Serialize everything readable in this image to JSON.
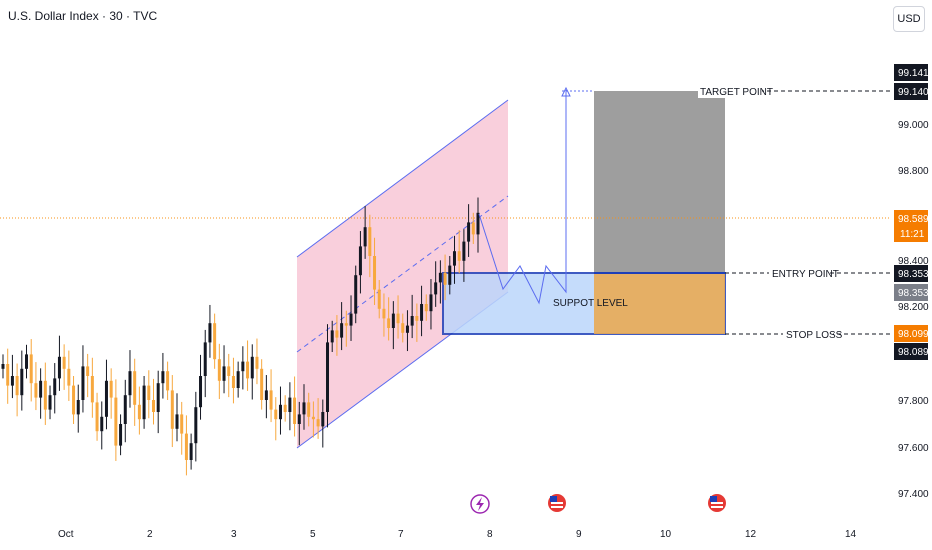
{
  "header": {
    "title": "U.S. Dollar Index · 30 · TVC",
    "currency_button": "USD"
  },
  "colors": {
    "candle_up": "#131722",
    "candle_down": "#f7a83e",
    "channel_fill": "#f8c7d6",
    "channel_line": "#5b6cf0",
    "support_fill": "#bcd6fb",
    "support_border": "#1e3fb8",
    "target_fill": "#9e9e9e",
    "stop_fill": "#e8aa54",
    "price_line": "#f7931a",
    "current_price_tag": "#f57c00"
  },
  "chart_data": {
    "type": "candlestick",
    "symbol": "U.S. Dollar Index",
    "interval": "30",
    "source": "TVC",
    "ylim": [
      97.28,
      99.28
    ],
    "y_ticks": [
      "99.000",
      "98.800",
      "98.400",
      "98.200",
      "97.800",
      "97.600",
      "97.400"
    ],
    "x_ticks": [
      "Oct",
      "2",
      "3",
      "5",
      "7",
      "8",
      "9",
      "10",
      "12",
      "14"
    ],
    "close_path": [
      97.93,
      97.84,
      97.88,
      97.8,
      97.91,
      97.97,
      97.85,
      97.79,
      97.86,
      97.74,
      97.8,
      97.87,
      97.96,
      97.91,
      97.84,
      97.72,
      97.78,
      97.92,
      97.88,
      97.77,
      97.65,
      97.71,
      97.86,
      97.79,
      97.59,
      97.68,
      97.8,
      97.9,
      97.76,
      97.7,
      97.84,
      97.78,
      97.73,
      97.85,
      97.9,
      97.82,
      97.66,
      97.72,
      97.64,
      97.53,
      97.6,
      97.75,
      97.88,
      98.02,
      98.1,
      97.95,
      97.86,
      97.92,
      97.88,
      97.83,
      97.9,
      97.94,
      97.87,
      97.96,
      97.91,
      97.78,
      97.82,
      97.74,
      97.7,
      97.76,
      97.73,
      97.79,
      97.68,
      97.72,
      97.77,
      97.71,
      97.7,
      97.67,
      97.73,
      98.02,
      98.07,
      98.04,
      98.1,
      98.09,
      98.14,
      98.3,
      98.42,
      98.5,
      98.38,
      98.24,
      98.16,
      98.12,
      98.08,
      98.14,
      98.1,
      98.06,
      98.09,
      98.13,
      98.11,
      98.18,
      98.15,
      98.22,
      98.27,
      98.31,
      98.26,
      98.34,
      98.4,
      98.36,
      98.44,
      98.52,
      98.47,
      98.56
    ],
    "series": [
      {
        "name": "Last close",
        "values": [
          98.589
        ]
      }
    ],
    "price_labels": [
      {
        "text": "99.141",
        "style": "black"
      },
      {
        "text": "99.140",
        "style": "black"
      },
      {
        "text": "98.589",
        "style": "current"
      },
      {
        "text": "11:21",
        "style": "current"
      },
      {
        "text": "98.353",
        "style": "black"
      },
      {
        "text": "98.353",
        "style": "gray"
      },
      {
        "text": "98.099",
        "style": "orange"
      },
      {
        "text": "98.089",
        "style": "black"
      }
    ],
    "annotations": [
      {
        "text": "TARGET POINT",
        "y": 99.14
      },
      {
        "text": "ENTRY POINT",
        "y": 98.353
      },
      {
        "text": "STOP LOSS",
        "y": 98.099
      },
      {
        "text": "SUPPOT LEVEL",
        "y": 98.23
      }
    ],
    "levels": {
      "target": 99.14,
      "entry": 98.353,
      "stop": 98.099,
      "support_top": 98.353,
      "support_bottom": 98.099
    },
    "event_icons": [
      "lightning-event-icon",
      "us-flag-event-icon",
      "us-flag-event-icon"
    ]
  }
}
